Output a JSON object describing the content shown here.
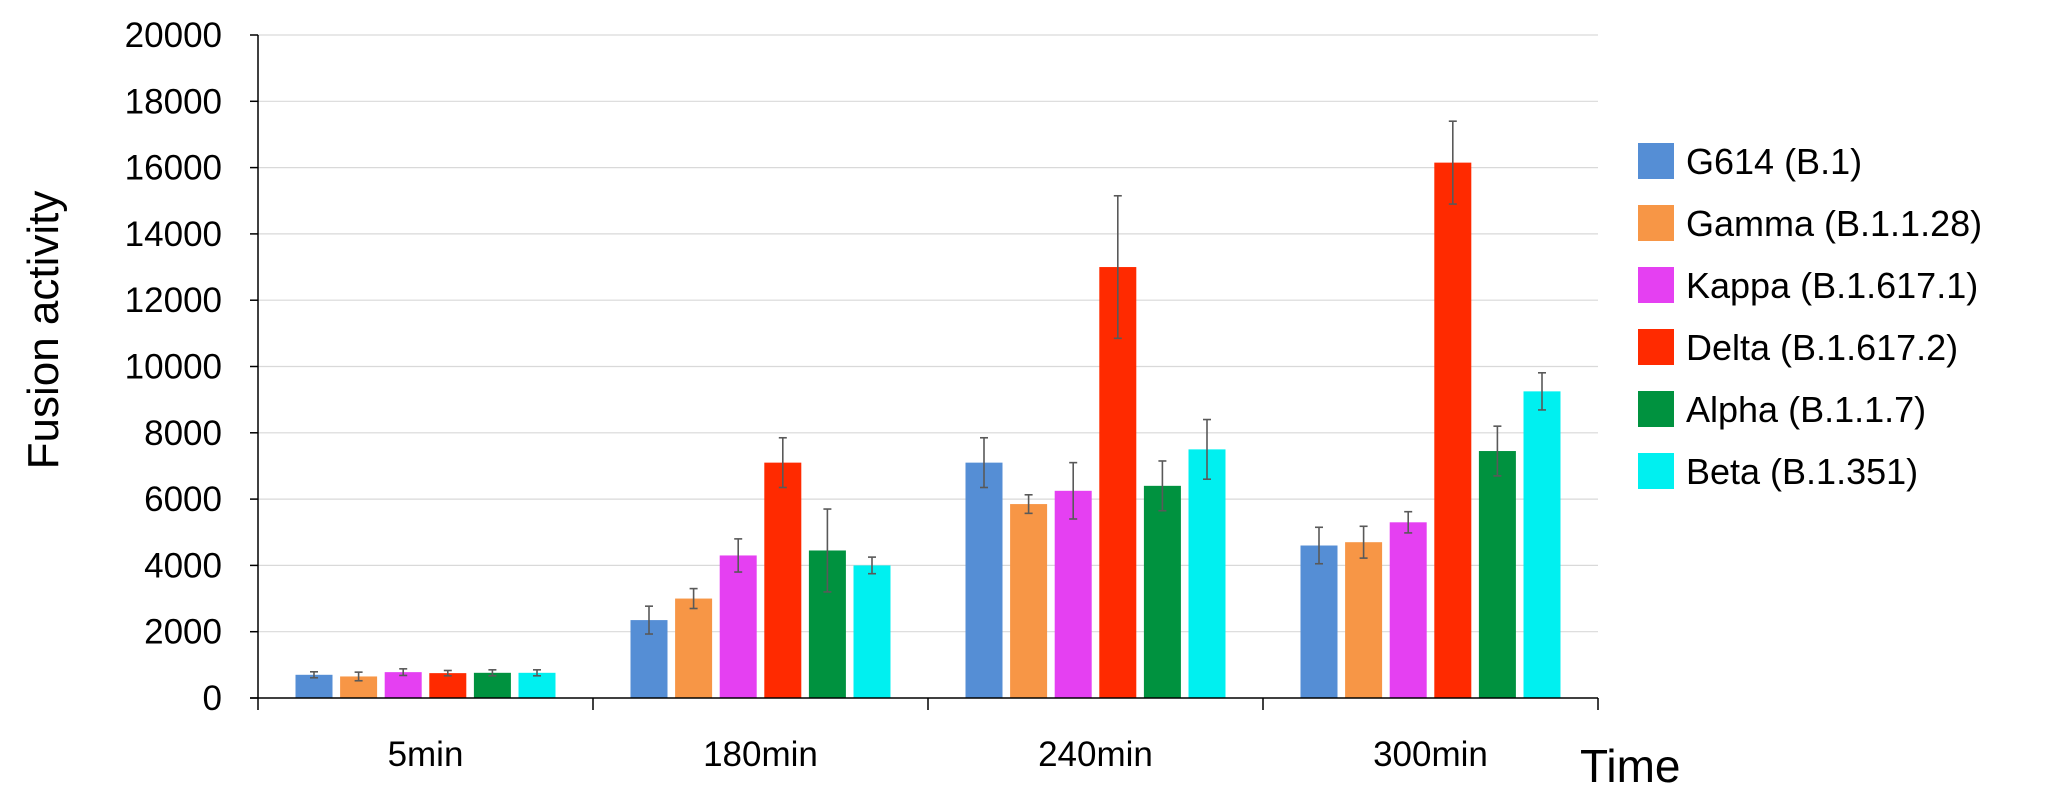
{
  "chart_data": {
    "type": "bar",
    "title": "",
    "xlabel": "Time",
    "ylabel": "Fusion activity",
    "categories": [
      "5min",
      "180min",
      "240min",
      "300min"
    ],
    "ylim": [
      0,
      20000
    ],
    "yticks": [
      0,
      2000,
      4000,
      6000,
      8000,
      10000,
      12000,
      14000,
      16000,
      18000,
      20000
    ],
    "grid": true,
    "legend_position": "right",
    "series": [
      {
        "name": "G614 (B.1)",
        "color": "#558ED5",
        "values": [
          700,
          2350,
          7100,
          4600
        ],
        "errors": [
          90,
          420,
          750,
          550
        ]
      },
      {
        "name": "Gamma (B.1.1.28)",
        "color": "#F79646",
        "values": [
          650,
          3000,
          5850,
          4700
        ],
        "errors": [
          130,
          300,
          280,
          480
        ]
      },
      {
        "name": "Kappa (B.1.617.1)",
        "color": "#E540F2",
        "values": [
          780,
          4300,
          6250,
          5300
        ],
        "errors": [
          100,
          500,
          850,
          320
        ]
      },
      {
        "name": "Delta (B.1.617.2)",
        "color": "#FF2A00",
        "values": [
          750,
          7100,
          13000,
          16150
        ],
        "errors": [
          80,
          750,
          2150,
          1250
        ]
      },
      {
        "name": "Alpha (B.1.1.7)",
        "color": "#00923F",
        "values": [
          760,
          4450,
          6400,
          7450
        ],
        "errors": [
          90,
          1250,
          750,
          750
        ]
      },
      {
        "name": "Beta (B.1.351)",
        "color": "#00F0F0",
        "values": [
          760,
          4000,
          7500,
          9250
        ],
        "errors": [
          90,
          250,
          900,
          560
        ]
      }
    ]
  }
}
